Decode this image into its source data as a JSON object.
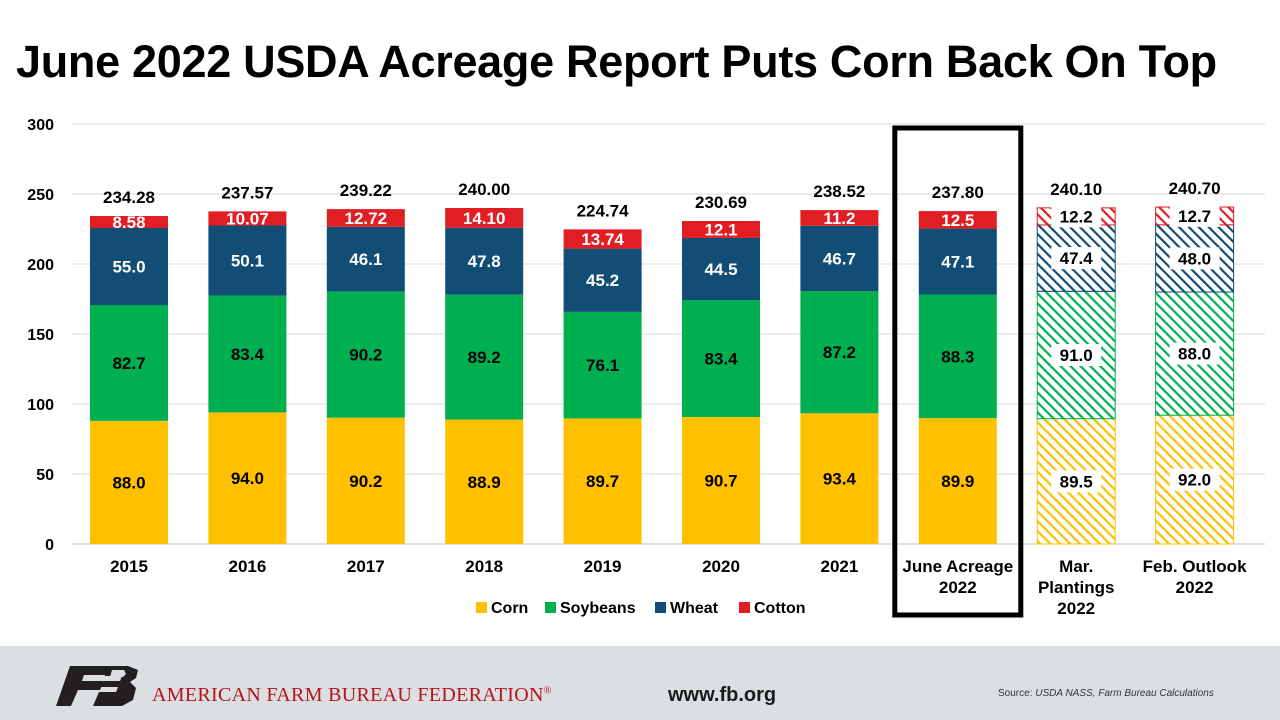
{
  "title": "June 2022 USDA Acreage Report Puts Corn Back On Top",
  "footer": {
    "org_name": "AMERICAN FARM BUREAU FEDERATION",
    "registered_mark": "®",
    "website": "www.fb.org",
    "source_prefix": "Source: ",
    "source_text": "USDA NASS, Farm Bureau Calculations"
  },
  "colors": {
    "corn": "#ffc000",
    "soybeans": "#00b050",
    "wheat": "#114d74",
    "cotton": "#e11e24",
    "highlight_box": "#000000",
    "footer_bg": "#dcdfe2",
    "brand_red": "#b5121b"
  },
  "chart_data": {
    "type": "bar",
    "stacked": true,
    "categories": [
      [
        "2015"
      ],
      [
        "2016"
      ],
      [
        "2017"
      ],
      [
        "2018"
      ],
      [
        "2019"
      ],
      [
        "2020"
      ],
      [
        "2021"
      ],
      [
        "June Acreage",
        "2022"
      ],
      [
        "Mar.",
        "Plantings",
        "2022"
      ],
      [
        "Feb. Outlook",
        "2022"
      ]
    ],
    "series": [
      {
        "name": "Corn",
        "color": "#ffc000",
        "values": [
          88.0,
          94.0,
          90.2,
          88.9,
          89.7,
          90.7,
          93.4,
          89.9,
          89.5,
          92.0
        ],
        "labels": [
          "88.0",
          "94.0",
          "90.2",
          "88.9",
          "89.7",
          "90.7",
          "93.4",
          "89.9",
          "89.5",
          "92.0"
        ]
      },
      {
        "name": "Soybeans",
        "color": "#00b050",
        "values": [
          82.7,
          83.4,
          90.2,
          89.2,
          76.1,
          83.4,
          87.2,
          88.3,
          91.0,
          88.0
        ],
        "labels": [
          "82.7",
          "83.4",
          "90.2",
          "89.2",
          "76.1",
          "83.4",
          "87.2",
          "88.3",
          "91.0",
          "88.0"
        ]
      },
      {
        "name": "Wheat",
        "color": "#114d74",
        "values": [
          55.0,
          50.1,
          46.1,
          47.8,
          45.2,
          44.5,
          46.7,
          47.1,
          47.4,
          48.0
        ],
        "labels": [
          "55.0",
          "50.1",
          "46.1",
          "47.8",
          "45.2",
          "44.5",
          "46.7",
          "47.1",
          "47.4",
          "48.0"
        ]
      },
      {
        "name": "Cotton",
        "color": "#e11e24",
        "values": [
          8.58,
          10.07,
          12.72,
          14.1,
          13.74,
          12.1,
          11.2,
          12.5,
          12.2,
          12.7
        ],
        "labels": [
          "8.58",
          "10.07",
          "12.72",
          "14.10",
          "13.74",
          "12.1",
          "11.2",
          "12.5",
          "12.2",
          "12.7"
        ]
      }
    ],
    "totals": [
      "234.28",
      "237.57",
      "239.22",
      "240.00",
      "224.74",
      "230.69",
      "238.52",
      "237.80",
      "240.10",
      "240.70"
    ],
    "projected": [
      false,
      false,
      false,
      false,
      false,
      false,
      false,
      false,
      true,
      true
    ],
    "highlighted_index": 7,
    "ylim": [
      0,
      300
    ],
    "yticks": [
      0,
      50,
      100,
      150,
      200,
      250,
      300
    ],
    "grid": true,
    "legend_position": "bottom"
  }
}
